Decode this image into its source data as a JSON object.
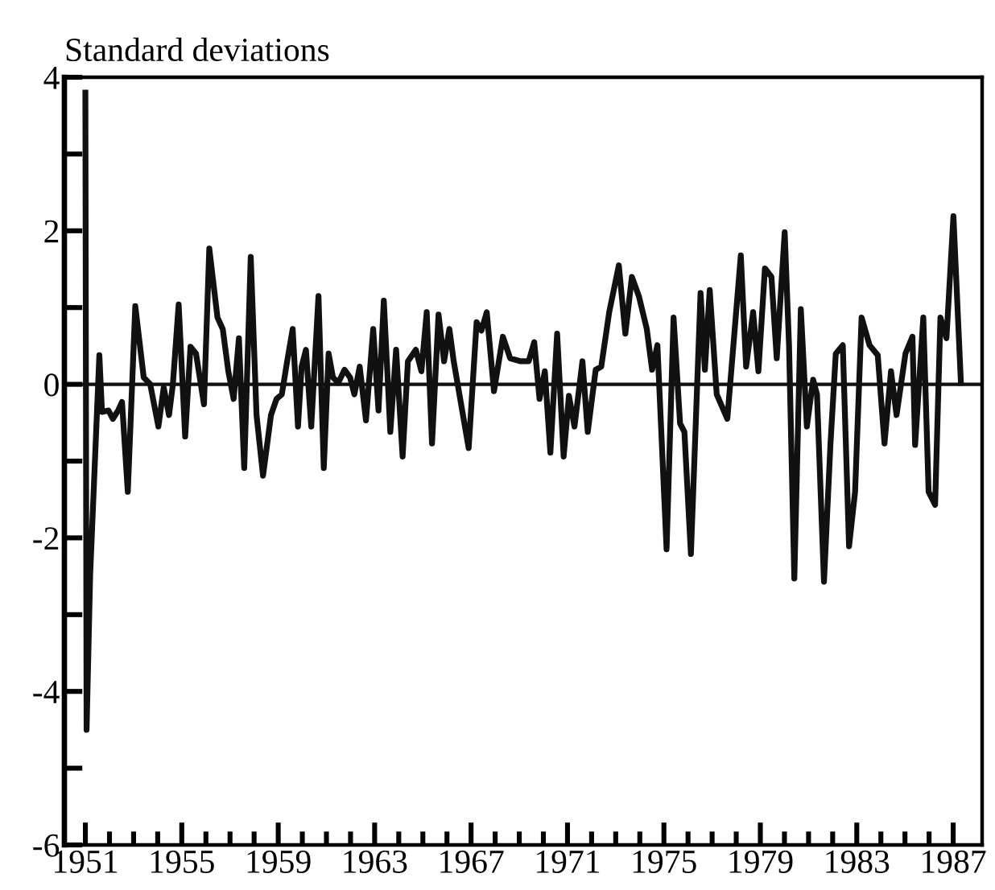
{
  "chart_data": {
    "type": "line",
    "ylabel": "Standard deviations",
    "x": [
      1951.0,
      1951.05,
      1951.2,
      1951.58,
      1951.69,
      1951.96,
      1952.14,
      1952.36,
      1952.52,
      1952.76,
      1953.07,
      1953.42,
      1953.69,
      1954.03,
      1954.25,
      1954.47,
      1954.63,
      1954.87,
      1955.14,
      1955.36,
      1955.59,
      1955.92,
      1956.14,
      1956.48,
      1956.7,
      1956.93,
      1957.15,
      1957.37,
      1957.59,
      1957.86,
      1958.1,
      1958.37,
      1958.7,
      1958.93,
      1959.15,
      1959.37,
      1959.6,
      1959.82,
      1959.97,
      1960.15,
      1960.37,
      1960.67,
      1960.89,
      1961.09,
      1961.27,
      1961.49,
      1961.75,
      1961.98,
      1962.16,
      1962.38,
      1962.64,
      1962.94,
      1963.16,
      1963.38,
      1963.65,
      1963.89,
      1964.16,
      1964.38,
      1964.71,
      1964.94,
      1965.16,
      1965.38,
      1965.65,
      1965.88,
      1966.1,
      1966.28,
      1966.9,
      1967.23,
      1967.43,
      1967.65,
      1967.95,
      1968.32,
      1968.62,
      1969.06,
      1969.39,
      1969.62,
      1969.84,
      1970.06,
      1970.29,
      1970.57,
      1970.84,
      1971.06,
      1971.29,
      1971.62,
      1971.84,
      1972.17,
      1972.4,
      1972.73,
      1973.13,
      1973.4,
      1973.67,
      1973.96,
      1974.29,
      1974.51,
      1974.73,
      1975.11,
      1975.4,
      1975.67,
      1975.85,
      1976.12,
      1976.52,
      1976.7,
      1976.9,
      1977.19,
      1977.63,
      1978.19,
      1978.41,
      1978.7,
      1978.92,
      1979.19,
      1979.46,
      1979.68,
      1980.01,
      1980.19,
      1980.41,
      1980.68,
      1980.93,
      1981.19,
      1981.35,
      1981.64,
      1981.91,
      1982.13,
      1982.42,
      1982.68,
      1982.93,
      1983.2,
      1983.53,
      1983.87,
      1984.15,
      1984.42,
      1984.65,
      1985.02,
      1985.31,
      1985.42,
      1985.76,
      1985.98,
      1986.25,
      1986.47,
      1986.72,
      1987.01,
      1987.32
    ],
    "series": [
      {
        "color": "#111111",
        "values": [
          3.8,
          -4.5,
          -2.47,
          0.38,
          -0.36,
          -0.34,
          -0.45,
          -0.34,
          -0.23,
          -1.4,
          1.02,
          0.09,
          0.0,
          -0.55,
          -0.04,
          -0.4,
          0.0,
          1.04,
          -0.68,
          0.49,
          0.4,
          -0.26,
          1.77,
          0.87,
          0.72,
          0.17,
          -0.19,
          0.6,
          -1.09,
          1.66,
          -0.4,
          -1.19,
          -0.4,
          -0.19,
          -0.13,
          0.3,
          0.72,
          -0.55,
          0.23,
          0.45,
          -0.55,
          1.15,
          -1.09,
          0.4,
          0.09,
          0.02,
          0.19,
          0.09,
          -0.13,
          0.23,
          -0.47,
          0.72,
          -0.34,
          1.09,
          -0.62,
          0.45,
          -0.94,
          0.3,
          0.45,
          0.17,
          0.94,
          -0.77,
          0.91,
          0.3,
          0.72,
          0.3,
          -0.83,
          0.81,
          0.7,
          0.94,
          -0.09,
          0.62,
          0.34,
          0.3,
          0.3,
          0.55,
          -0.19,
          0.17,
          -0.89,
          0.66,
          -0.94,
          -0.15,
          -0.55,
          0.3,
          -0.62,
          0.19,
          0.23,
          0.94,
          1.55,
          0.66,
          1.4,
          1.15,
          0.72,
          0.19,
          0.51,
          -2.15,
          0.87,
          -0.51,
          -0.62,
          -2.21,
          1.19,
          0.19,
          1.23,
          -0.13,
          -0.45,
          1.68,
          0.23,
          0.94,
          0.17,
          1.51,
          1.4,
          0.34,
          1.98,
          0.51,
          -2.53,
          0.98,
          -0.55,
          0.06,
          -0.13,
          -2.57,
          -0.77,
          0.4,
          0.51,
          -2.11,
          -1.4,
          0.87,
          0.51,
          0.38,
          -0.77,
          0.17,
          -0.4,
          0.4,
          0.62,
          -0.79,
          0.87,
          -1.4,
          -1.57,
          0.87,
          0.6,
          2.19,
          0.02
        ]
      }
    ],
    "xlim": [
      1950.13,
      1988.2
    ],
    "ylim": [
      -6,
      4
    ],
    "xticks": [
      1951,
      {
        "value": 1952,
        "label": null
      },
      {
        "value": 1953,
        "label": null
      },
      {
        "value": 1954,
        "label": null
      },
      1955,
      {
        "value": 1956,
        "label": null
      },
      {
        "value": 1957,
        "label": null
      },
      {
        "value": 1958,
        "label": null
      },
      1959,
      {
        "value": 1960,
        "label": null
      },
      {
        "value": 1961,
        "label": null
      },
      {
        "value": 1962,
        "label": null
      },
      1963,
      {
        "value": 1964,
        "label": null
      },
      {
        "value": 1965,
        "label": null
      },
      {
        "value": 1966,
        "label": null
      },
      1967,
      {
        "value": 1968,
        "label": null
      },
      {
        "value": 1969,
        "label": null
      },
      {
        "value": 1970,
        "label": null
      },
      1971,
      {
        "value": 1972,
        "label": null
      },
      {
        "value": 1973,
        "label": null
      },
      {
        "value": 1974,
        "label": null
      },
      1975,
      {
        "value": 1976,
        "label": null
      },
      {
        "value": 1977,
        "label": null
      },
      {
        "value": 1978,
        "label": null
      },
      1979,
      {
        "value": 1980,
        "label": null
      },
      {
        "value": 1981,
        "label": null
      },
      {
        "value": 1982,
        "label": null
      },
      1983,
      {
        "value": 1984,
        "label": null
      },
      {
        "value": 1985,
        "label": null
      },
      {
        "value": 1986,
        "label": null
      },
      1987
    ],
    "yticks": [
      -6,
      {
        "value": -5,
        "label": null
      },
      -4,
      {
        "value": -3,
        "label": null
      },
      -2,
      {
        "value": -1,
        "label": null
      },
      0,
      {
        "value": 1,
        "label": null
      },
      2,
      {
        "value": 3,
        "label": null
      },
      4
    ],
    "ref_lines": [
      {
        "axis": "y",
        "value": 0,
        "color": "#111111"
      }
    ],
    "grid": false,
    "legend": false,
    "marker": "none",
    "line_style": "solid"
  }
}
